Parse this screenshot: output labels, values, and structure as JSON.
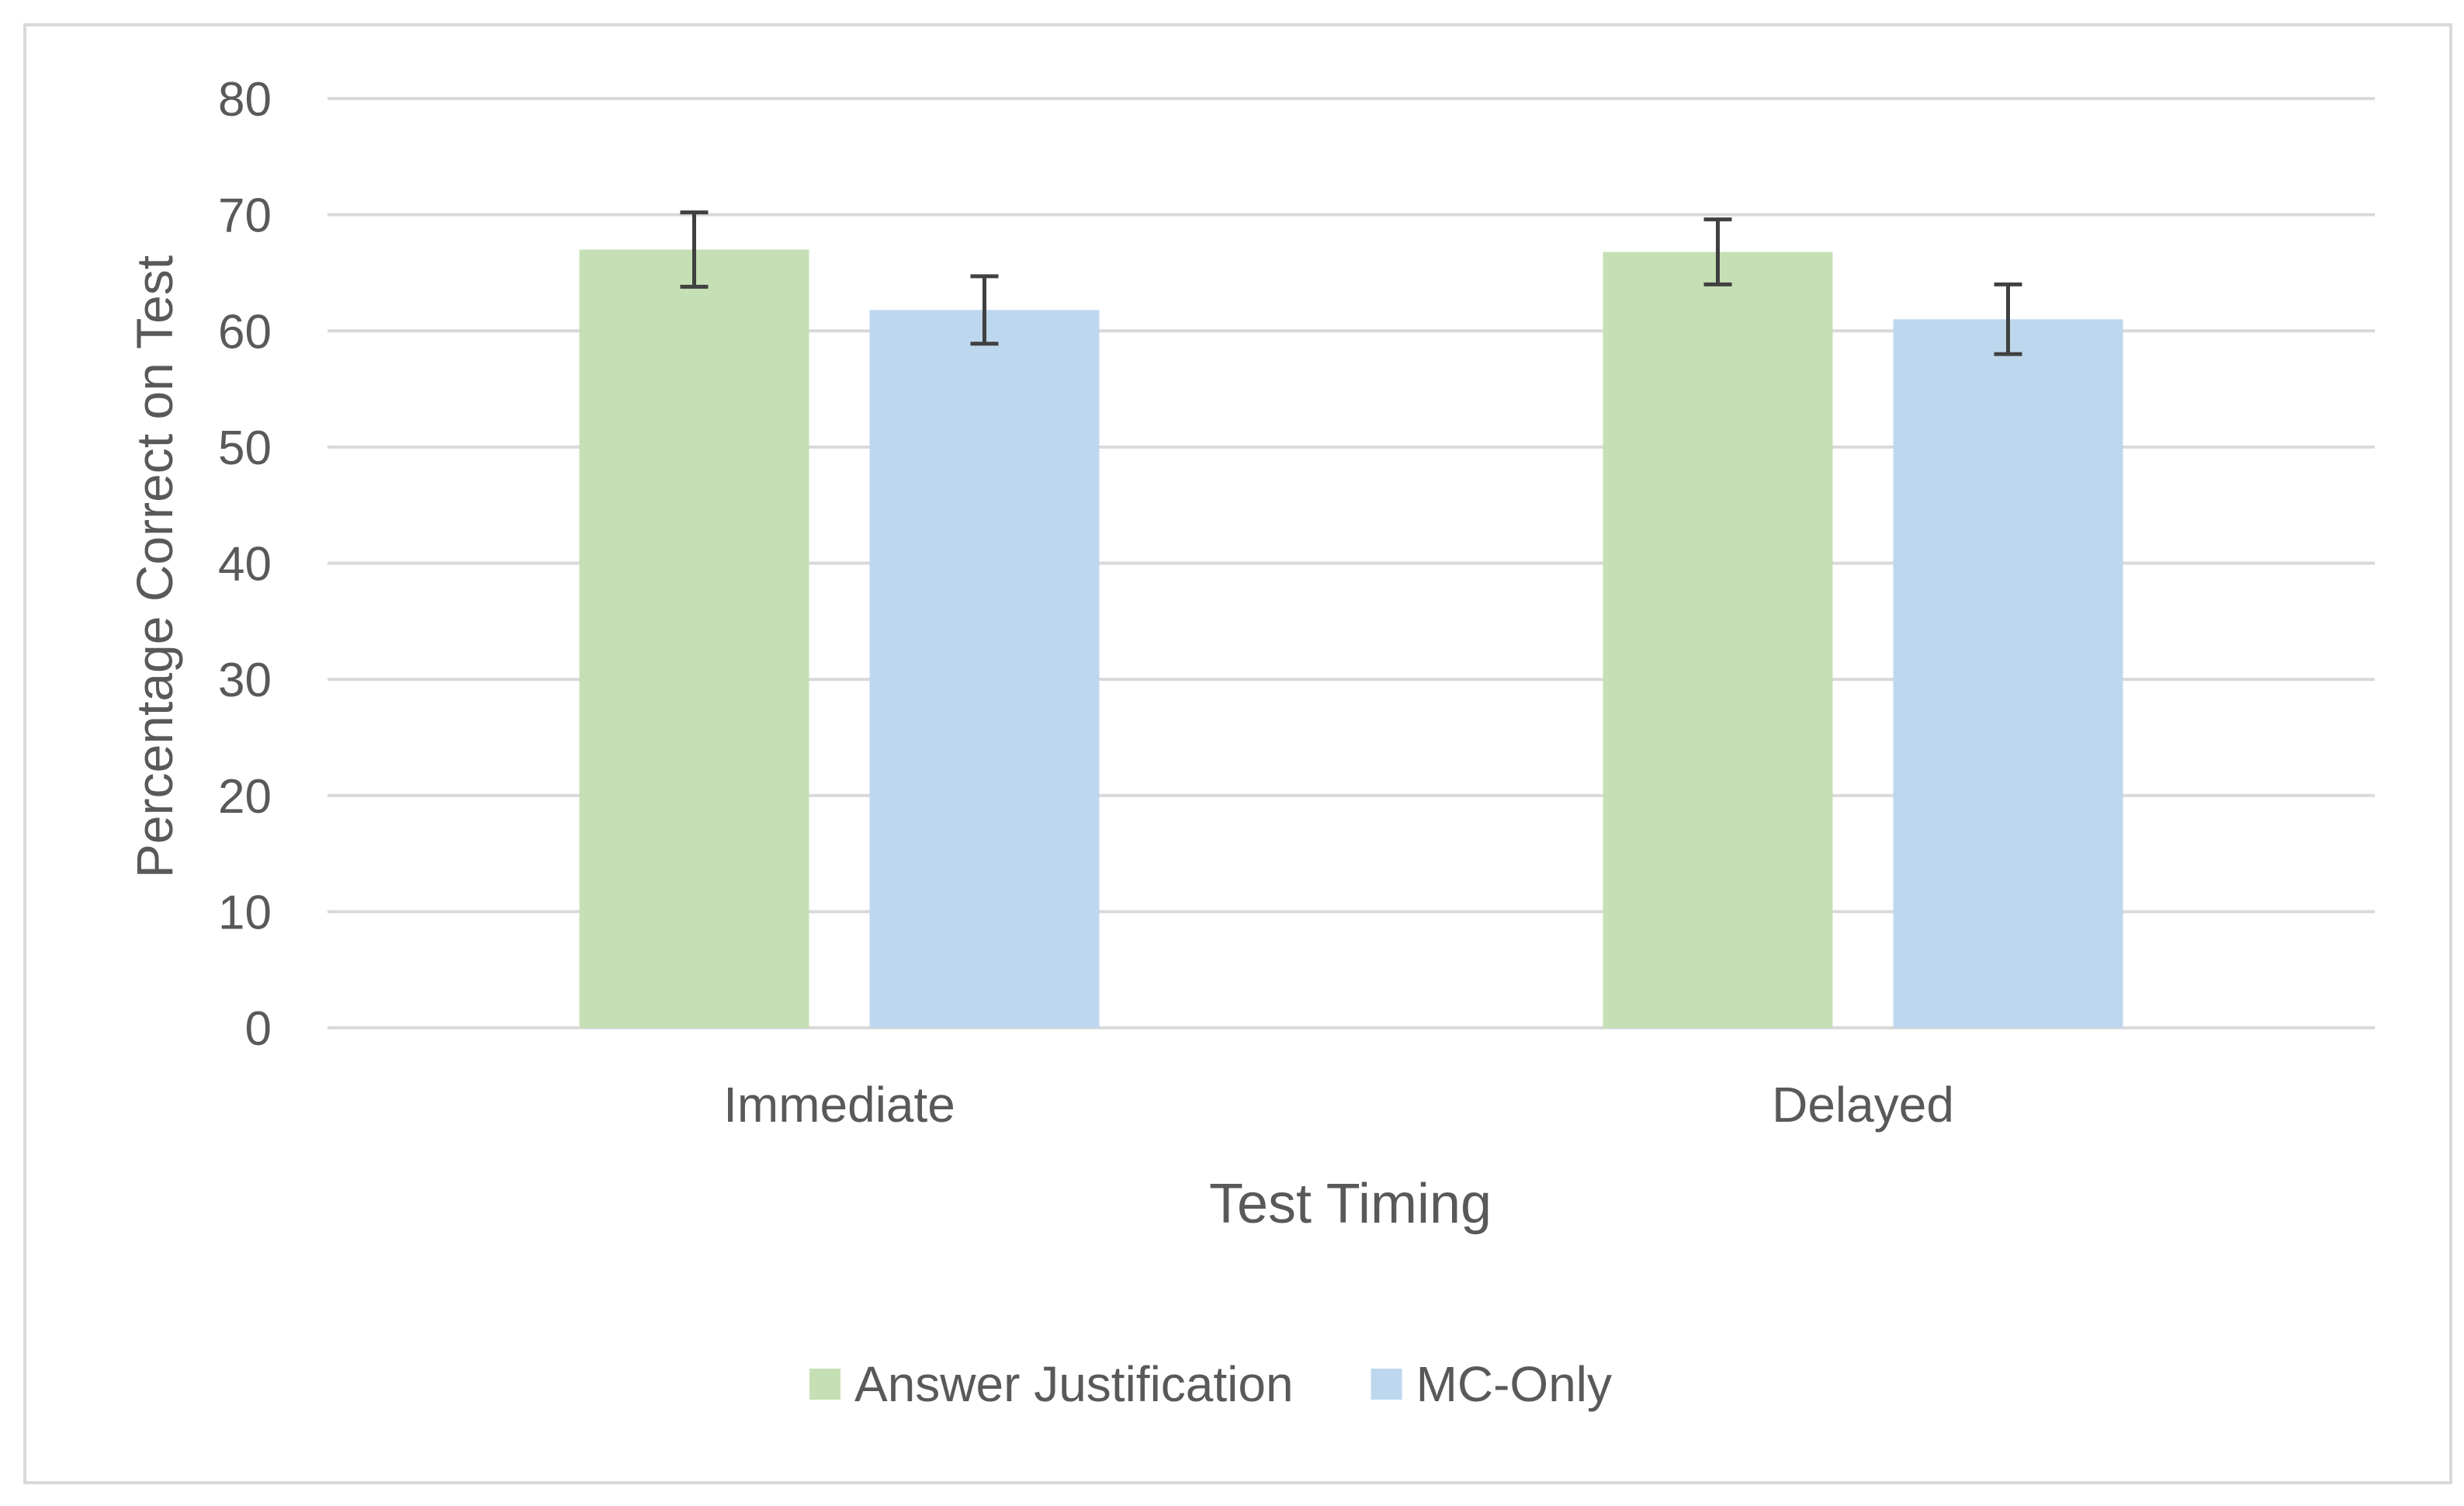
{
  "chart_data": {
    "type": "bar",
    "title": "",
    "xlabel": "Test Timing",
    "ylabel": "Percentage Correct on Test",
    "ylim": [
      0,
      80
    ],
    "yticks": [
      0,
      10,
      20,
      30,
      40,
      50,
      60,
      70,
      80
    ],
    "categories": [
      "Immediate",
      "Delayed"
    ],
    "series": [
      {
        "name": "Answer Justification",
        "color": "#c5e0b4",
        "values": [
          67.0,
          66.8
        ],
        "error": [
          3.2,
          2.8
        ]
      },
      {
        "name": "MC-Only",
        "color": "#bdd7ee",
        "values": [
          61.8,
          61.0
        ],
        "error": [
          2.9,
          3.0
        ]
      }
    ],
    "grid": true,
    "legend": "bottom",
    "error_bar_color": "#404040",
    "gridline_color": "#d9d9d9"
  }
}
